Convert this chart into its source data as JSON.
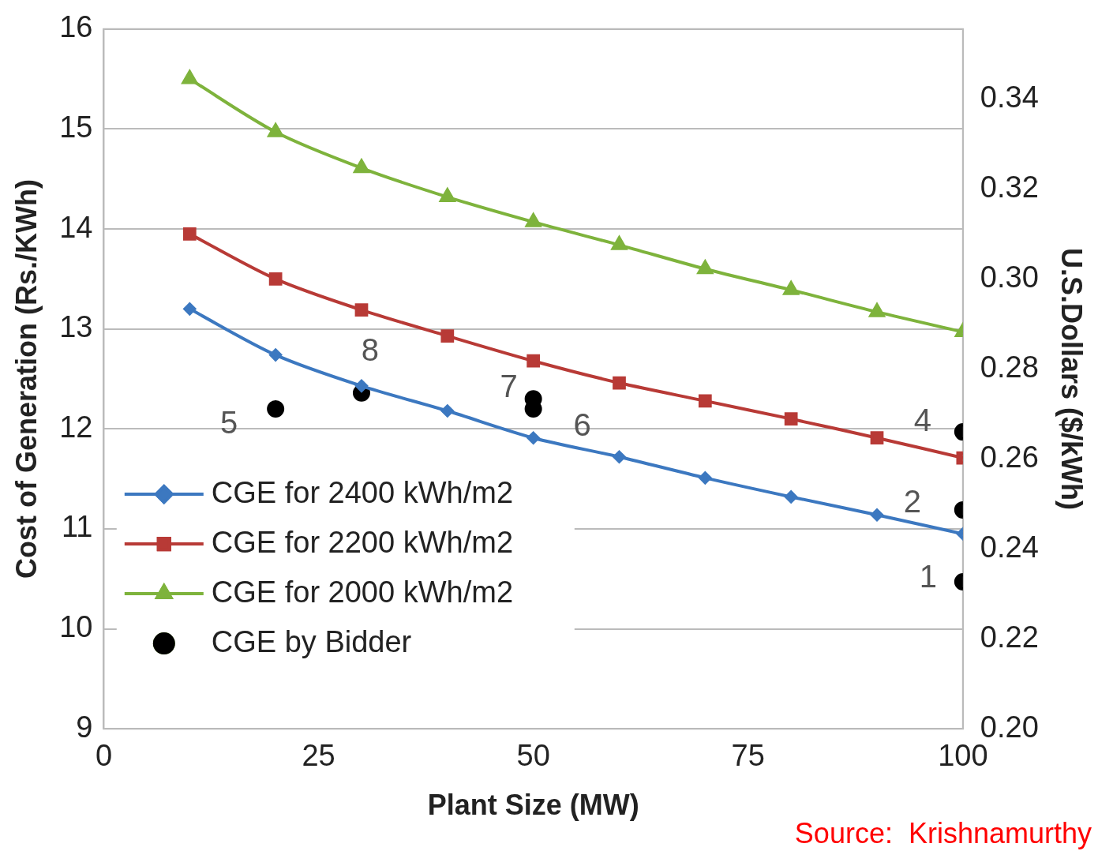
{
  "chart_data": {
    "type": "line",
    "xlabel": "Plant Size (MW)",
    "ylabel": "Cost of Generation (Rs./KWh)",
    "y2label": "U.S.Dollars ($/kWh)",
    "x": [
      10,
      20,
      30,
      40,
      50,
      60,
      70,
      80,
      90,
      100
    ],
    "series": [
      {
        "name": "CGE for 2400 kWh/m2",
        "color": "#3c78c0",
        "marker": "diamond",
        "values": [
          13.2,
          12.74,
          12.43,
          12.18,
          11.91,
          11.72,
          11.51,
          11.32,
          11.14,
          10.95
        ]
      },
      {
        "name": "CGE for 2200 kWh/m2",
        "color": "#b83a36",
        "marker": "square",
        "values": [
          13.95,
          13.5,
          13.19,
          12.93,
          12.68,
          12.46,
          12.28,
          12.1,
          11.91,
          11.71
        ]
      },
      {
        "name": "CGE for 2000 kWh/m2",
        "color": "#7eb33c",
        "marker": "triangle",
        "values": [
          15.5,
          14.97,
          14.61,
          14.32,
          14.07,
          13.84,
          13.6,
          13.39,
          13.17,
          12.97
        ]
      },
      {
        "name": "CGE by Bidder",
        "type": "scatter",
        "color": "#000000",
        "marker": "circle",
        "x": [
          20,
          30,
          50,
          50,
          100,
          100,
          100
        ],
        "values": [
          12.2,
          12.36,
          12.3,
          12.2,
          11.97,
          11.19,
          10.47
        ]
      }
    ],
    "xlim": [
      0,
      100
    ],
    "xticks": [
      0,
      25,
      50,
      75,
      100
    ],
    "ylim": [
      9,
      16
    ],
    "yticks": [
      9,
      10,
      11,
      12,
      13,
      14,
      15,
      16
    ],
    "y2lim": [
      0.2,
      0.3555
    ],
    "y2ticks": [
      {
        "value": 0.2,
        "label": "0.20"
      },
      {
        "value": 0.22,
        "label": "0.22"
      },
      {
        "value": 0.24,
        "label": "0.24"
      },
      {
        "value": 0.26,
        "label": "0.26"
      },
      {
        "value": 0.28,
        "label": "0.28"
      },
      {
        "value": 0.3,
        "label": "0.30"
      },
      {
        "value": 0.32,
        "label": "0.32"
      },
      {
        "value": 0.34,
        "label": "0.34"
      }
    ],
    "grid": "y",
    "legend": "left",
    "annotations": [
      {
        "text": "5",
        "x": 20,
        "y": 12.2
      },
      {
        "text": "8",
        "x": 30,
        "y": 12.36
      },
      {
        "text": "7",
        "x": 50,
        "y": 12.3
      },
      {
        "text": "6",
        "x": 50,
        "y": 12.2
      },
      {
        "text": "4",
        "x": 100,
        "y": 11.97
      },
      {
        "text": "2",
        "x": 100,
        "y": 11.19
      },
      {
        "text": "1",
        "x": 100,
        "y": 10.47
      },
      "Source:  Krishnamurthy"
    ]
  }
}
